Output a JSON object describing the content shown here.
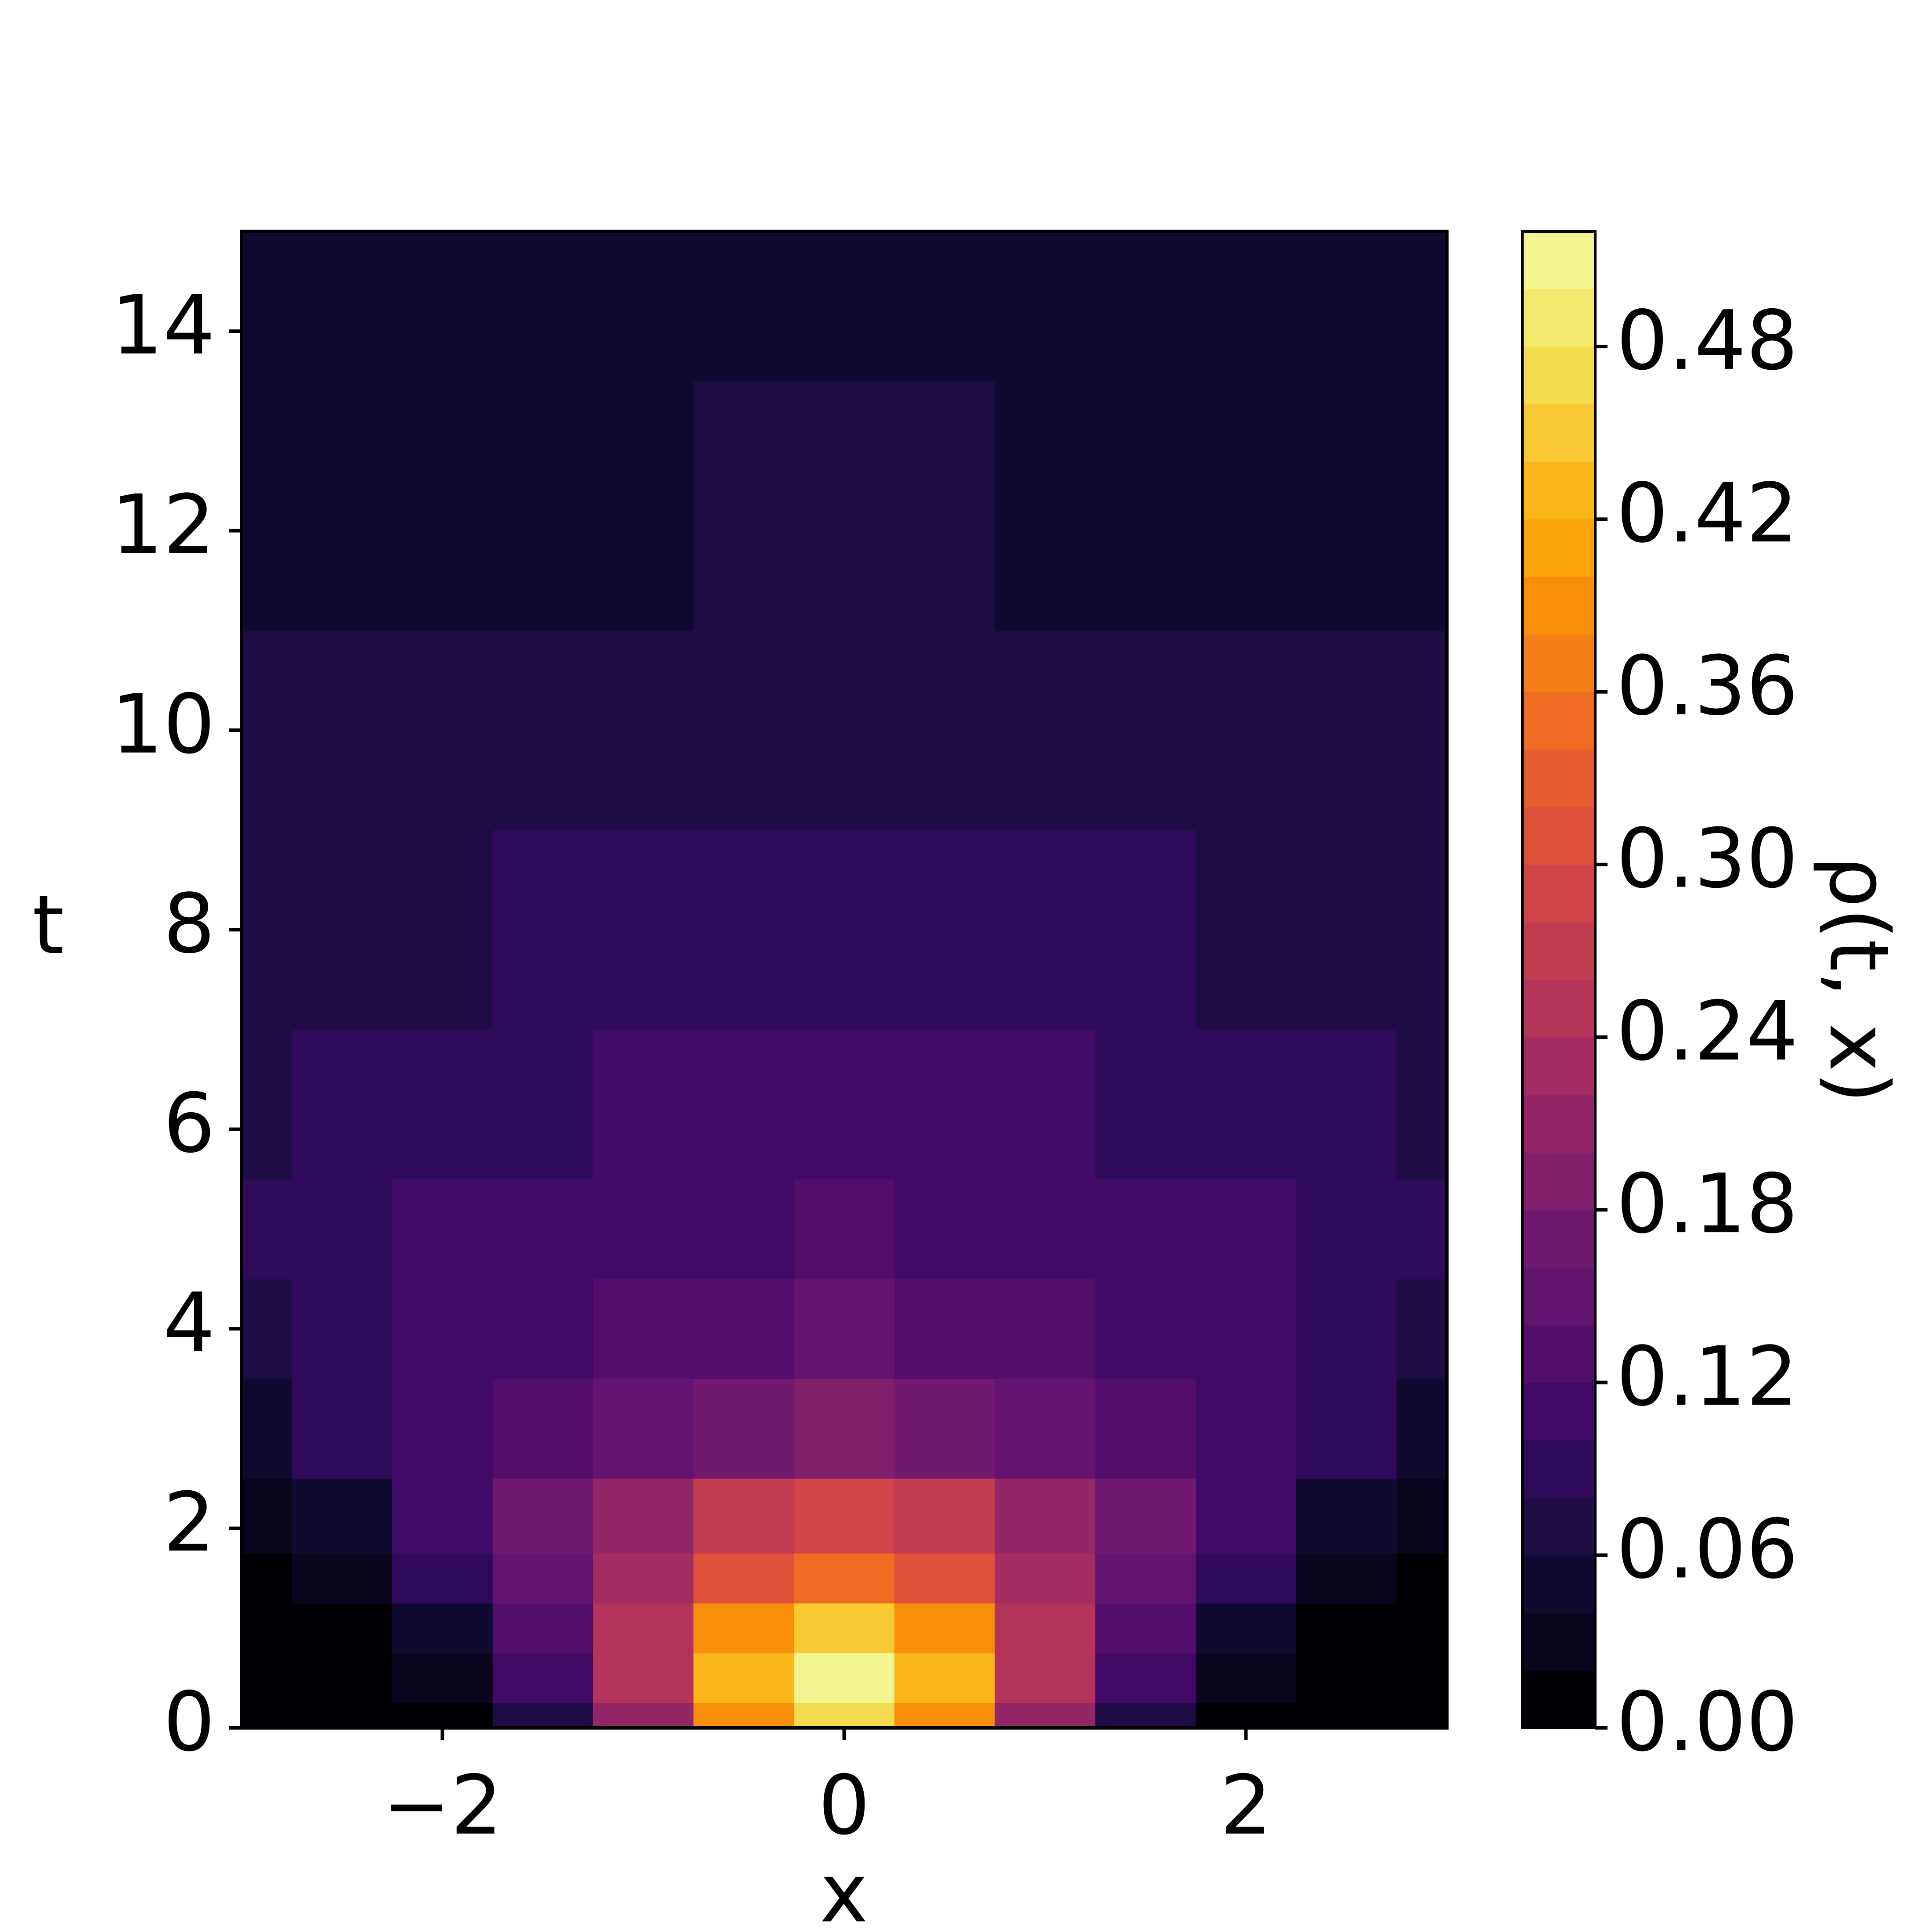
{
  "chart_data": {
    "type": "contour",
    "xlabel": "x",
    "ylabel": "t",
    "colorbar_label": "ρ(t, x)",
    "x": [
      -3,
      -2.5,
      -2,
      -1.5,
      -1,
      -0.5,
      0,
      0.5,
      1,
      1.5,
      2,
      2.5,
      3
    ],
    "y": [
      0,
      0.5,
      1,
      1.5,
      2,
      3,
      4,
      5,
      6,
      8,
      10,
      12,
      15
    ],
    "z": [
      [
        0,
        0.003,
        0.017,
        0.072,
        0.2,
        0.38,
        0.47,
        0.38,
        0.2,
        0.072,
        0.017,
        0.003,
        0
      ],
      [
        0.001,
        0.006,
        0.029,
        0.102,
        0.25,
        0.426,
        0.51,
        0.426,
        0.25,
        0.102,
        0.029,
        0.006,
        0.001
      ],
      [
        0.003,
        0.014,
        0.048,
        0.126,
        0.252,
        0.383,
        0.44,
        0.383,
        0.252,
        0.126,
        0.048,
        0.014,
        0.003
      ],
      [
        0.014,
        0.036,
        0.082,
        0.152,
        0.238,
        0.311,
        0.34,
        0.311,
        0.238,
        0.152,
        0.082,
        0.036,
        0.014
      ],
      [
        0.029,
        0.059,
        0.103,
        0.16,
        0.218,
        0.263,
        0.28,
        0.263,
        0.218,
        0.16,
        0.103,
        0.059,
        0.029
      ],
      [
        0.059,
        0.082,
        0.109,
        0.136,
        0.159,
        0.174,
        0.18,
        0.174,
        0.159,
        0.136,
        0.109,
        0.082,
        0.059
      ],
      [
        0.074,
        0.09,
        0.105,
        0.119,
        0.13,
        0.137,
        0.14,
        0.137,
        0.13,
        0.119,
        0.105,
        0.09,
        0.074
      ],
      [
        0.08,
        0.09,
        0.1,
        0.108,
        0.115,
        0.119,
        0.12,
        0.119,
        0.115,
        0.108,
        0.1,
        0.09,
        0.08
      ],
      [
        0.076,
        0.084,
        0.091,
        0.097,
        0.101,
        0.104,
        0.105,
        0.104,
        0.101,
        0.097,
        0.091,
        0.084,
        0.076
      ],
      [
        0.068,
        0.073,
        0.077,
        0.08,
        0.083,
        0.084,
        0.085,
        0.084,
        0.083,
        0.08,
        0.077,
        0.073,
        0.068
      ],
      [
        0.06,
        0.063,
        0.065,
        0.067,
        0.069,
        0.07,
        0.07,
        0.07,
        0.069,
        0.067,
        0.065,
        0.063,
        0.06
      ],
      [
        0.053,
        0.055,
        0.057,
        0.058,
        0.059,
        0.06,
        0.06,
        0.06,
        0.059,
        0.058,
        0.057,
        0.055,
        0.053
      ],
      [
        0.045,
        0.047,
        0.048,
        0.049,
        0.049,
        0.05,
        0.05,
        0.05,
        0.049,
        0.049,
        0.048,
        0.047,
        0.045
      ]
    ],
    "xlim": [
      -3,
      3
    ],
    "ylim": [
      0,
      15
    ],
    "xticks": [
      {
        "value": -2,
        "label": "−2"
      },
      0,
      2
    ],
    "yticks": [
      0,
      2,
      4,
      6,
      8,
      10,
      12,
      14
    ],
    "levels": [
      0,
      0.02,
      0.04,
      0.06,
      0.08,
      0.1,
      0.12,
      0.14,
      0.16,
      0.18,
      0.2,
      0.22,
      0.24,
      0.26,
      0.28,
      0.3,
      0.32,
      0.34,
      0.36,
      0.38,
      0.4,
      0.42,
      0.44,
      0.46,
      0.48,
      0.5,
      0.52
    ],
    "colors": [
      "#000004",
      "#08051d",
      "#110a30",
      "#1e0c45",
      "#2f0a5b",
      "#420a68",
      "#530e6c",
      "#62146e",
      "#71196e",
      "#821f6b",
      "#932667",
      "#a42c60",
      "#b43359",
      "#c23c4f",
      "#cf4446",
      "#dd513a",
      "#e65d2f",
      "#ee6c22",
      "#f47e17",
      "#f98e09",
      "#fca50a",
      "#fbb61a",
      "#f8c932",
      "#f3dc50",
      "#f1ea6e",
      "#f3f590"
    ],
    "colorbar_ticks": [
      {
        "value": 0,
        "label": "0.00"
      },
      0.06,
      0.12,
      0.18,
      0.24,
      {
        "value": 0.3,
        "label": "0.30"
      },
      0.36,
      0.42,
      0.48
    ]
  }
}
